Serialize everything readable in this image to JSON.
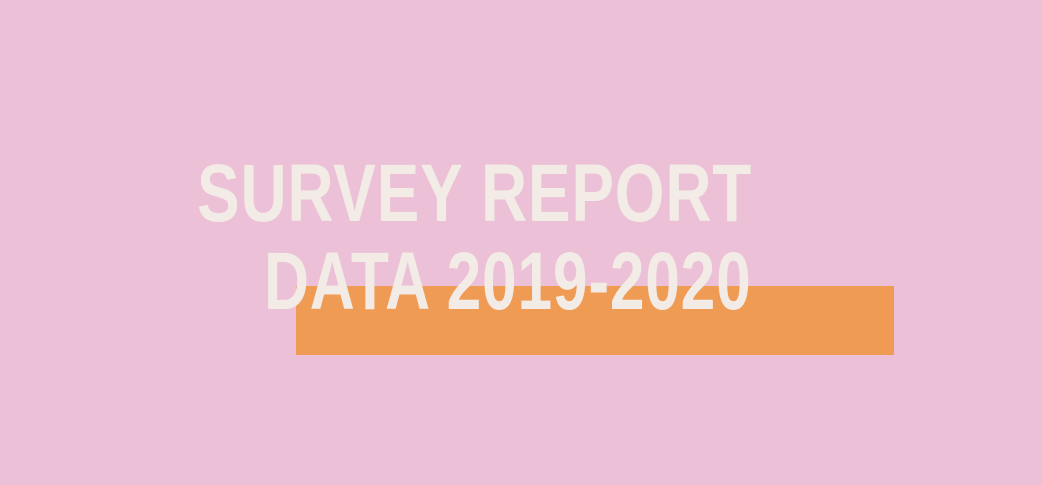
{
  "colors": {
    "background": "#ecc0d6",
    "accent_bar": "#f09b54",
    "text": "#f2ebe6"
  },
  "banner": {
    "title_line_1": "SURVEY REPORT",
    "title_line_2": "DATA 2019-2020"
  }
}
